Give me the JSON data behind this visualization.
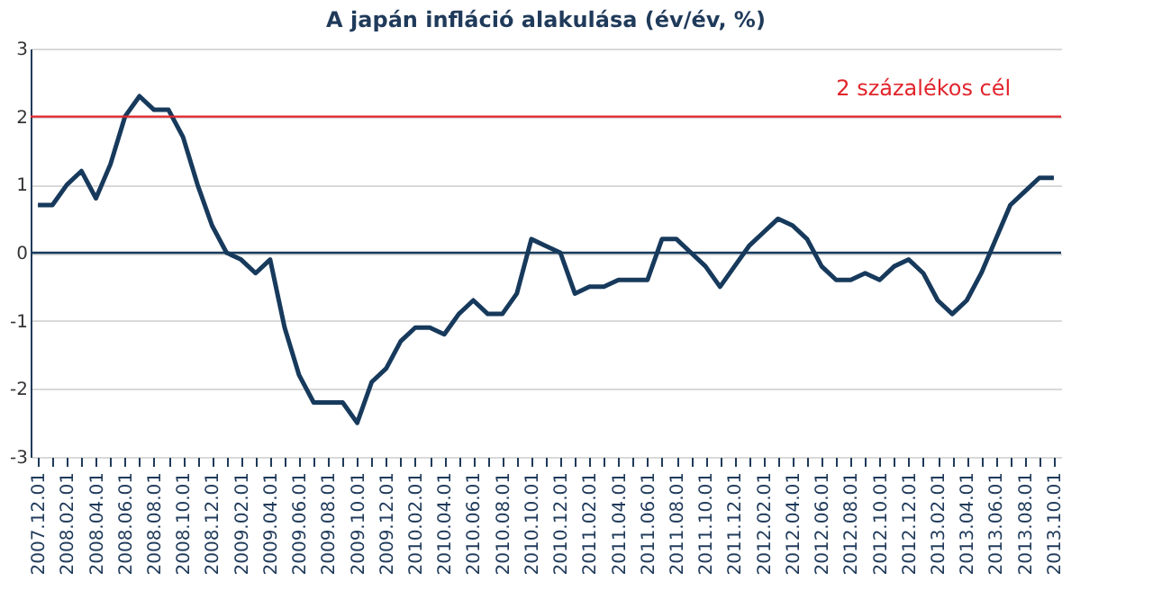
{
  "chart_data": {
    "type": "line",
    "title": "A japán infláció alakulása (év/év, %)",
    "categories": [
      "2007.12.01",
      null,
      "2008.02.01",
      null,
      "2008.04.01",
      null,
      "2008.06.01",
      null,
      "2008.08.01",
      null,
      "2008.10.01",
      null,
      "2008.12.01",
      null,
      "2009.02.01",
      null,
      "2009.04.01",
      null,
      "2009.06.01",
      null,
      "2009.08.01",
      null,
      "2009.10.01",
      null,
      "2009.12.01",
      null,
      "2010.02.01",
      null,
      "2010.04.01",
      null,
      "2010.06.01",
      null,
      "2010.08.01",
      null,
      "2010.10.01",
      null,
      "2010.12.01",
      null,
      "2011.02.01",
      null,
      "2011.04.01",
      null,
      "2011.06.01",
      null,
      "2011.08.01",
      null,
      "2011.10.01",
      null,
      "2011.12.01",
      null,
      "2012.02.01",
      null,
      "2012.04.01",
      null,
      "2012.06.01",
      null,
      "2012.08.01",
      null,
      "2012.10.01",
      null,
      "2012.12.01",
      null,
      "2013.02.01",
      null,
      "2013.04.01",
      null,
      "2013.06.01",
      null,
      "2013.08.01",
      null,
      "2013.10.01"
    ],
    "series": [
      {
        "color": "#173a5c",
        "values": [
          0.7,
          0.7,
          1.0,
          1.2,
          0.8,
          1.3,
          2.0,
          2.3,
          2.1,
          2.1,
          1.7,
          1.0,
          0.4,
          0.0,
          -0.1,
          -0.3,
          -0.1,
          -1.1,
          -1.8,
          -2.2,
          -2.2,
          -2.2,
          -2.5,
          -1.9,
          -1.7,
          -1.3,
          -1.1,
          -1.1,
          -1.2,
          -0.9,
          -0.7,
          -0.9,
          -0.9,
          -0.6,
          0.2,
          0.1,
          0.0,
          -0.6,
          -0.5,
          -0.5,
          -0.4,
          -0.4,
          -0.4,
          0.2,
          0.2,
          0.0,
          -0.2,
          -0.5,
          -0.2,
          0.1,
          0.3,
          0.5,
          0.4,
          0.2,
          -0.2,
          -0.4,
          -0.4,
          -0.3,
          -0.4,
          -0.2,
          -0.1,
          -0.3,
          -0.7,
          -0.9,
          -0.7,
          -0.3,
          0.2,
          0.7,
          0.9,
          1.1,
          1.1
        ]
      }
    ],
    "ylim": [
      -3,
      3
    ],
    "yticks": [
      -3,
      -2,
      -1,
      0,
      1,
      2,
      3
    ],
    "grid": "y",
    "ref_lines": [
      {
        "axis": "y",
        "value": 2,
        "label": "2 százalékos cél",
        "color": "#e2242b"
      },
      {
        "axis": "y",
        "value": 0,
        "color": "#173a5c"
      }
    ]
  }
}
